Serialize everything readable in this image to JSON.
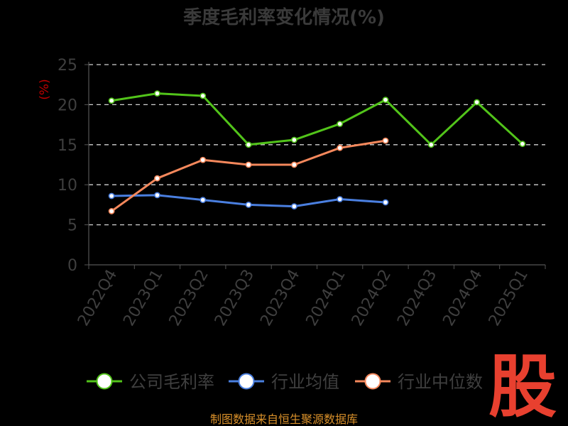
{
  "chart_data": {
    "type": "line",
    "title": "季度毛利率变化情况(%)",
    "ylabel": "(%)",
    "xlabel": "",
    "ylim": [
      0,
      25
    ],
    "yticks": [
      0,
      5,
      10,
      15,
      20,
      25
    ],
    "categories": [
      "2022Q4",
      "2023Q1",
      "2023Q2",
      "2023Q3",
      "2023Q4",
      "2024Q1",
      "2024Q2",
      "2024Q3",
      "2024Q4",
      "2025Q1"
    ],
    "grid": true,
    "legend_position": "bottom",
    "series": [
      {
        "name": "公司毛利率",
        "color": "#52c41a",
        "values": [
          20.5,
          21.4,
          21.1,
          15.0,
          15.6,
          17.6,
          20.6,
          15.0,
          20.3,
          15.1
        ]
      },
      {
        "name": "行业均值",
        "color": "#4a7fe0",
        "values": [
          8.6,
          8.7,
          8.1,
          7.5,
          7.3,
          8.2,
          7.8,
          null,
          null,
          null
        ]
      },
      {
        "name": "行业中位数",
        "color": "#f5885c",
        "values": [
          6.7,
          10.8,
          13.1,
          12.5,
          12.5,
          14.6,
          15.5,
          null,
          null,
          null
        ]
      }
    ]
  },
  "source": "制图数据来自恒生聚源数据库",
  "logo_text": "股"
}
